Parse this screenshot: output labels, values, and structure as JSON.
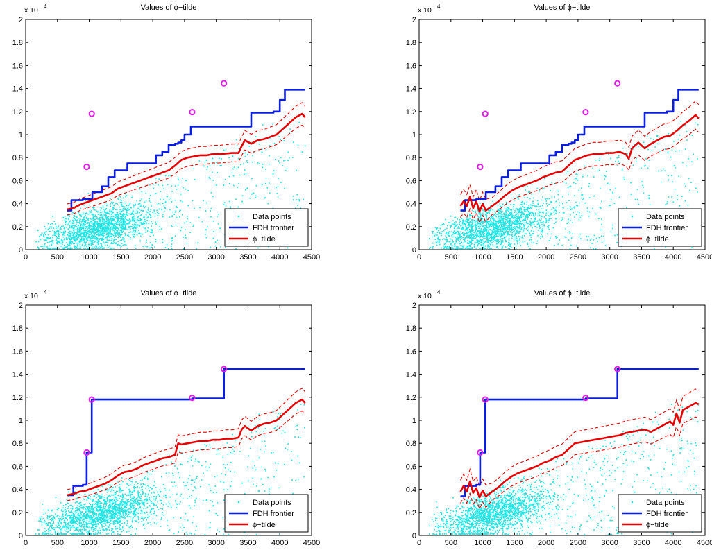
{
  "figure": {
    "panels": [
      {
        "title": "Values of ϕ−tilde",
        "scale_label": "x 10",
        "scale_exp": "4",
        "x_ticks": [
          "0",
          "500",
          "1000",
          "1500",
          "2000",
          "2500",
          "3000",
          "3500",
          "4000",
          "4500"
        ],
        "y_ticks": [
          "0",
          "0.2",
          "0.4",
          "0.6",
          "0.8",
          "1",
          "1.2",
          "1.4",
          "1.6",
          "1.8",
          "2"
        ],
        "legend": [
          "Data points",
          "FDH frontier",
          "ϕ−tilde"
        ]
      },
      {
        "title": "Values of ϕ−tilde",
        "scale_label": "x 10",
        "scale_exp": "4",
        "x_ticks": [
          "0",
          "500",
          "1000",
          "1500",
          "2000",
          "2500",
          "3000",
          "3500",
          "4000",
          "4500"
        ],
        "y_ticks": [
          "0",
          "0.2",
          "0.4",
          "0.6",
          "0.8",
          "1",
          "1.2",
          "1.4",
          "1.6",
          "1.8",
          "2"
        ],
        "legend": [
          "Data points",
          "FDH frontier",
          "ϕ−tilde"
        ]
      },
      {
        "title": "Values of ϕ−tilde",
        "scale_label": "x 10",
        "scale_exp": "4",
        "x_ticks": [
          "0",
          "500",
          "1000",
          "1500",
          "2000",
          "2500",
          "3000",
          "3500",
          "4000",
          "4500"
        ],
        "y_ticks": [
          "0",
          "0.2",
          "0.4",
          "0.6",
          "0.8",
          "1",
          "1.2",
          "1.4",
          "1.6",
          "1.8",
          "2"
        ],
        "legend": [
          "Data points",
          "FDH frontier",
          "ϕ−tilde"
        ]
      },
      {
        "title": "Values of ϕ−tilde",
        "scale_label": "x 10",
        "scale_exp": "4",
        "x_ticks": [
          "0",
          "500",
          "1000",
          "1500",
          "2000",
          "2500",
          "3000",
          "3500",
          "4000",
          "4500"
        ],
        "y_ticks": [
          "0",
          "0.2",
          "0.4",
          "0.6",
          "0.8",
          "1",
          "1.2",
          "1.4",
          "1.6",
          "1.8",
          "2"
        ],
        "legend": [
          "Data points",
          "FDH frontier",
          "ϕ−tilde"
        ]
      }
    ]
  },
  "colors": {
    "data_points": "#22e6e6",
    "frontier": "#0a1ee0",
    "phi": "#e60000",
    "outliers": "#e01ee6"
  },
  "chart_data": [
    {
      "type": "line",
      "title": "Values of ϕ−tilde",
      "xlim": [
        0,
        4500
      ],
      "ylim": [
        0,
        20000
      ],
      "legend_position": "bottom-right",
      "grid": false,
      "outliers": {
        "x": [
          960,
          1040,
          2620,
          3120
        ],
        "y": [
          7200,
          11800,
          11950,
          14450
        ]
      },
      "series": [
        {
          "name": "FDH frontier",
          "x": [
            650,
            720,
            720,
            900,
            900,
            1050,
            1050,
            1200,
            1200,
            1300,
            1300,
            1400,
            1400,
            1420,
            1420,
            1600,
            1600,
            1750,
            1750,
            2050,
            2050,
            2150,
            2150,
            2250,
            2250,
            2350,
            2350,
            2400,
            2400,
            2450,
            2450,
            2500,
            2500,
            2600,
            2600,
            3550,
            3550,
            3900,
            3900,
            4000,
            4000,
            4080,
            4080,
            4400
          ],
          "y": [
            3400,
            3400,
            4300,
            4300,
            4400,
            4400,
            5000,
            5000,
            5500,
            5500,
            6300,
            6300,
            6900,
            6900,
            6900,
            6900,
            7500,
            7500,
            7500,
            7500,
            8200,
            8200,
            8500,
            8500,
            9100,
            9100,
            9200,
            9200,
            9300,
            9300,
            9500,
            9500,
            10000,
            10000,
            10700,
            10700,
            11900,
            11900,
            12000,
            12000,
            13000,
            13000,
            13900,
            13900
          ]
        },
        {
          "name": "ϕ−tilde",
          "x": [
            650,
            750,
            850,
            950,
            1050,
            1150,
            1250,
            1350,
            1450,
            1550,
            1650,
            1750,
            1850,
            1950,
            2050,
            2150,
            2250,
            2350,
            2450,
            2550,
            2650,
            2750,
            2850,
            2950,
            3050,
            3150,
            3250,
            3350,
            3400,
            3450,
            3550,
            3650,
            3750,
            3850,
            3950,
            4050,
            4150,
            4250,
            4350,
            4400
          ],
          "y": [
            3500,
            3600,
            3900,
            4100,
            4300,
            4500,
            4700,
            4900,
            5300,
            5500,
            5700,
            5900,
            6100,
            6300,
            6500,
            6700,
            6900,
            7300,
            7800,
            8000,
            8100,
            8200,
            8200,
            8300,
            8300,
            8350,
            8400,
            8400,
            9000,
            9500,
            9200,
            9500,
            9600,
            9800,
            10000,
            10500,
            11000,
            11500,
            11800,
            11500
          ]
        }
      ]
    },
    {
      "type": "line",
      "title": "Values of ϕ−tilde",
      "xlim": [
        0,
        4500
      ],
      "ylim": [
        0,
        20000
      ],
      "legend_position": "bottom-right",
      "grid": false,
      "outliers": {
        "x": [
          960,
          1040,
          2620,
          3120
        ],
        "y": [
          7200,
          11800,
          11950,
          14450
        ]
      },
      "series": [
        {
          "name": "FDH frontier",
          "x": [
            650,
            720,
            720,
            900,
            900,
            1050,
            1050,
            1200,
            1200,
            1300,
            1300,
            1400,
            1400,
            1420,
            1420,
            1600,
            1600,
            1750,
            1750,
            2050,
            2050,
            2150,
            2150,
            2250,
            2250,
            2350,
            2350,
            2400,
            2400,
            2450,
            2450,
            2500,
            2500,
            2600,
            2600,
            3550,
            3550,
            3900,
            3900,
            4000,
            4000,
            4080,
            4080,
            4400
          ],
          "y": [
            3400,
            3400,
            4300,
            4300,
            4400,
            4400,
            5000,
            5000,
            5500,
            5500,
            6300,
            6300,
            6900,
            6900,
            6900,
            6900,
            7500,
            7500,
            7500,
            7500,
            8200,
            8200,
            8500,
            8500,
            9100,
            9100,
            9200,
            9200,
            9300,
            9300,
            9500,
            9500,
            10000,
            10000,
            10700,
            10700,
            11900,
            11900,
            12000,
            12000,
            13000,
            13000,
            13900,
            13900
          ]
        },
        {
          "name": "ϕ−tilde",
          "x": [
            650,
            700,
            750,
            800,
            850,
            900,
            950,
            1000,
            1050,
            1150,
            1250,
            1350,
            1450,
            1550,
            1650,
            1750,
            1850,
            1950,
            2050,
            2150,
            2250,
            2350,
            2450,
            2550,
            2650,
            2750,
            2850,
            2950,
            3050,
            3150,
            3250,
            3300,
            3350,
            3450,
            3550,
            3650,
            3750,
            3850,
            3950,
            4050,
            4150,
            4250,
            4350,
            4400
          ],
          "y": [
            3800,
            4200,
            3800,
            4600,
            3600,
            4200,
            3300,
            4000,
            3400,
            3800,
            4200,
            4700,
            5100,
            5400,
            5600,
            5800,
            6000,
            6300,
            6500,
            6700,
            6800,
            7300,
            7800,
            8000,
            8200,
            8300,
            8300,
            8400,
            8400,
            8500,
            8300,
            7900,
            8800,
            9300,
            8800,
            9200,
            9500,
            9800,
            9900,
            10300,
            10800,
            11200,
            11700,
            11400
          ]
        }
      ]
    },
    {
      "type": "line",
      "title": "Values of ϕ−tilde",
      "xlim": [
        0,
        4500
      ],
      "ylim": [
        0,
        20000
      ],
      "legend_position": "bottom-right",
      "grid": false,
      "outliers": {
        "x": [
          960,
          1040,
          2620,
          3120
        ],
        "y": [
          7200,
          11800,
          11950,
          14450
        ]
      },
      "series": [
        {
          "name": "FDH frontier",
          "x": [
            650,
            750,
            750,
            900,
            900,
            960,
            960,
            1040,
            1040,
            2620,
            2620,
            3120,
            3120,
            4400
          ],
          "y": [
            3500,
            3500,
            4300,
            4300,
            4400,
            4400,
            7200,
            7200,
            11800,
            11800,
            11900,
            11900,
            14450,
            14450
          ]
        },
        {
          "name": "ϕ−tilde",
          "x": [
            650,
            750,
            850,
            950,
            1050,
            1150,
            1250,
            1350,
            1450,
            1550,
            1650,
            1750,
            1850,
            1950,
            2050,
            2150,
            2250,
            2350,
            2400,
            2450,
            2550,
            2650,
            2750,
            2850,
            2950,
            3050,
            3150,
            3250,
            3350,
            3400,
            3450,
            3550,
            3650,
            3750,
            3850,
            3950,
            4050,
            4150,
            4250,
            4350,
            4400
          ],
          "y": [
            3500,
            3600,
            3800,
            3900,
            4100,
            4300,
            4500,
            4800,
            5200,
            5500,
            5600,
            5800,
            6100,
            6300,
            6500,
            6700,
            6800,
            7000,
            8000,
            7900,
            8000,
            8100,
            8200,
            8200,
            8300,
            8300,
            8400,
            8400,
            8500,
            9200,
            9500,
            9100,
            9500,
            9700,
            9800,
            10000,
            10500,
            11000,
            11500,
            11800,
            11500
          ]
        }
      ]
    },
    {
      "type": "line",
      "title": "Values of ϕ−tilde",
      "xlim": [
        0,
        4500
      ],
      "ylim": [
        0,
        20000
      ],
      "legend_position": "bottom-right",
      "grid": false,
      "outliers": {
        "x": [
          960,
          1040,
          2620,
          3120
        ],
        "y": [
          7200,
          11800,
          11950,
          14450
        ]
      },
      "series": [
        {
          "name": "FDH frontier",
          "x": [
            650,
            720,
            720,
            900,
            900,
            960,
            960,
            1040,
            1040,
            2620,
            2620,
            3120,
            3120,
            4400
          ],
          "y": [
            3400,
            3400,
            4300,
            4300,
            4400,
            4400,
            7200,
            7200,
            11800,
            11800,
            11900,
            11900,
            14450,
            14450
          ]
        },
        {
          "name": "ϕ−tilde",
          "x": [
            650,
            700,
            750,
            800,
            850,
            900,
            950,
            1000,
            1050,
            1150,
            1250,
            1350,
            1450,
            1550,
            1650,
            1750,
            1850,
            1950,
            2050,
            2150,
            2250,
            2350,
            2450,
            2550,
            2650,
            2750,
            2850,
            2950,
            3050,
            3150,
            3250,
            3350,
            3450,
            3550,
            3650,
            3750,
            3850,
            3950,
            4000,
            4050,
            4100,
            4150,
            4250,
            4350,
            4400
          ],
          "y": [
            3800,
            4300,
            3800,
            4700,
            3700,
            4100,
            3300,
            3900,
            3400,
            3800,
            4200,
            4700,
            5100,
            5400,
            5600,
            5800,
            6000,
            6300,
            6500,
            6800,
            7000,
            7500,
            8000,
            8100,
            8200,
            8300,
            8400,
            8500,
            8600,
            8700,
            8900,
            9000,
            9100,
            9200,
            9000,
            9300,
            9600,
            9900,
            9600,
            10600,
            9800,
            10900,
            11200,
            11500,
            11400
          ]
        }
      ]
    }
  ]
}
